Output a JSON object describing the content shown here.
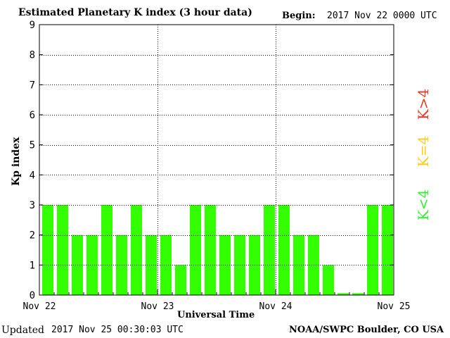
{
  "header": {
    "title": "Estimated Planetary K index (3 hour data)",
    "begin_label": "Begin:",
    "begin_value": "2017 Nov 22 0000 UTC"
  },
  "footer": {
    "updated_label": "Updated",
    "updated_value": "2017 Nov 25 00:30:03 UTC",
    "source": "NOAA/SWPC Boulder, CO USA"
  },
  "legend": [
    {
      "label": "K<4",
      "color": "#33ee33"
    },
    {
      "label": "K=4",
      "color": "#ffcc11"
    },
    {
      "label": "K>4",
      "color": "#ee3322"
    }
  ],
  "chart_data": {
    "type": "bar",
    "title": "Estimated Planetary K index (3 hour data)",
    "xlabel": "Universal Time",
    "ylabel": "Kp index",
    "ylim": [
      0,
      9
    ],
    "yticks": [
      0,
      1,
      2,
      3,
      4,
      5,
      6,
      7,
      8,
      9
    ],
    "x_tick_labels": [
      "Nov 22",
      "Nov 23",
      "Nov 24",
      "Nov 25"
    ],
    "grid": true,
    "bar_color": "#33ff00",
    "values": [
      3,
      3,
      2,
      2,
      3,
      2,
      3,
      2,
      2,
      1,
      3,
      3,
      2,
      2,
      2,
      3,
      3,
      2,
      2,
      1,
      0,
      0,
      3,
      3
    ]
  }
}
